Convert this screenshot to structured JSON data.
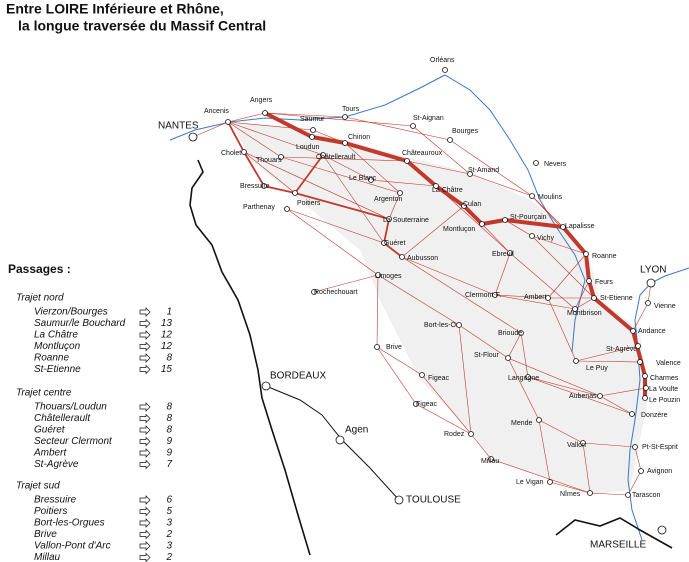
{
  "title": [
    "Entre LOIRE Inférieure et Rhône,",
    "la longue traversée du Massif Central"
  ],
  "places": [
    "Orléans",
    "Angers",
    "NANTES",
    "Ancenis",
    "Saumur",
    "Tours",
    "St-Aignan",
    "Bourges",
    "Chinon",
    "Loudun",
    "Cholet",
    "Thouars",
    "Châtellerault",
    "Châteauroux",
    "St-Amand",
    "Nevers",
    "Le Blanc",
    "La Châtre",
    "Bressuire",
    "Argenton",
    "Poitiers",
    "Moulins",
    "Parthenay",
    "Culan",
    "La Souterraine",
    "St-Pourçain",
    "Lapalisse",
    "Montluçon",
    "Vichy",
    "Guéret",
    "Aubusson",
    "Ebreuil",
    "Roanne",
    "Limoges",
    "Feurs",
    "LYON",
    "Rochechouart",
    "Clermont-F.",
    "Ambert",
    "St-Etienne",
    "Vienne",
    "Montbrison",
    "Bort-les-O.",
    "Andance",
    "Brioude",
    "Brive",
    "St-Agrève",
    "Valence",
    "St-Flour",
    "Le Puy",
    "Charmes",
    "Langogne",
    "Figeac",
    "La Voulte",
    "Aubenas",
    "Le Pouzin",
    "Figeac",
    "Donzère",
    "Mende",
    "Rodez",
    "Vallon",
    "Pt-St-Esprit",
    "Millau",
    "Avignon",
    "Le Vigan",
    "Nîmes",
    "Tarascon",
    "BORDEAUX",
    "Agen",
    "TOULOUSE",
    "MARSEILLE"
  ],
  "legend": {
    "heading": "Passages :",
    "groups": [
      {
        "title": "Trajet nord",
        "items": [
          {
            "name": "Vierzon/Bourges",
            "count": 1
          },
          {
            "name": "Saumur/le Bouchard",
            "count": 13
          },
          {
            "name": "La Châtre",
            "count": 12
          },
          {
            "name": "Montluçon",
            "count": 12
          },
          {
            "name": "Roanne",
            "count": 8
          },
          {
            "name": "St-Etienne",
            "count": 15
          }
        ]
      },
      {
        "title": "Trajet centre",
        "items": [
          {
            "name": "Thouars/Loudun",
            "count": 8
          },
          {
            "name": "Châtellerault",
            "count": 8
          },
          {
            "name": "Guéret",
            "count": 8
          },
          {
            "name": "Secteur Clermont",
            "count": 9
          },
          {
            "name": "Ambert",
            "count": 9
          },
          {
            "name": "St-Agrève",
            "count": 7
          }
        ]
      },
      {
        "title": "Trajet sud",
        "items": [
          {
            "name": "Bressuire",
            "count": 6
          },
          {
            "name": "Poitiers",
            "count": 5
          },
          {
            "name": "Bort-les-Orgues",
            "count": 3
          },
          {
            "name": "Brive",
            "count": 2
          },
          {
            "name": "Vallon-Pont d'Arc",
            "count": 3
          },
          {
            "name": "Millau",
            "count": 2
          }
        ]
      }
    ]
  }
}
